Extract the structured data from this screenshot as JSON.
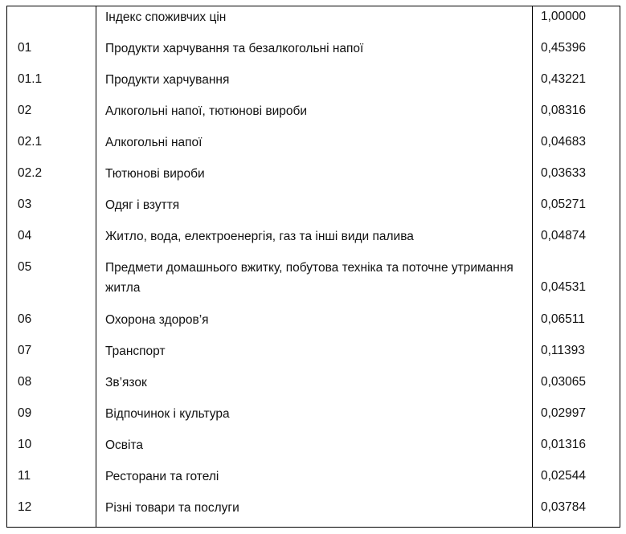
{
  "table": {
    "rows": [
      {
        "code": "",
        "name": "Індекс споживчих цін",
        "value": "1,00000"
      },
      {
        "code": "01",
        "name": "Продукти харчування та безалкогольні напої",
        "value": "0,45396"
      },
      {
        "code": "01.1",
        "name": "Продукти харчування",
        "value": "0,43221"
      },
      {
        "code": "02",
        "name": "Алкогольні напої, тютюнові вироби",
        "value": "0,08316"
      },
      {
        "code": "02.1",
        "name": "Алкогольні напої",
        "value": "0,04683"
      },
      {
        "code": "02.2",
        "name": "Тютюнові вироби",
        "value": "0,03633"
      },
      {
        "code": "03",
        "name": "Одяг і взуття",
        "value": "0,05271"
      },
      {
        "code": "04",
        "name": "Житло, вода, електроенергія,  газ та інші види палива",
        "value": "0,04874"
      },
      {
        "code": "05",
        "name": "Предмети домашнього вжитку, побутова техніка та поточне утримання житла",
        "value": "0,04531"
      },
      {
        "code": "06",
        "name": "Охорона здоров’я",
        "value": "0,06511"
      },
      {
        "code": "07",
        "name": "Транспорт",
        "value": "0,11393"
      },
      {
        "code": "08",
        "name": "Зв’язок",
        "value": "0,03065"
      },
      {
        "code": "09",
        "name": "Відпочинок і культура",
        "value": "0,02997"
      },
      {
        "code": "10",
        "name": "Освіта",
        "value": "0,01316"
      },
      {
        "code": "11",
        "name": "Ресторани та готелі",
        "value": "0,02544"
      },
      {
        "code": "12",
        "name": "Різні товари та послуги",
        "value": "0,03784"
      }
    ]
  }
}
